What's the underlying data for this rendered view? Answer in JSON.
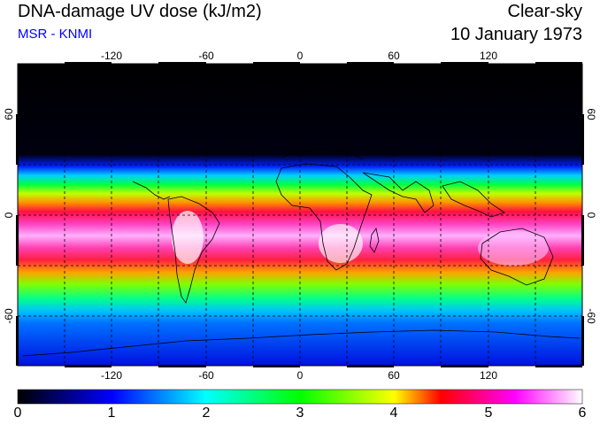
{
  "header": {
    "title": "DNA-damage UV dose (kJ/m2)",
    "source": "MSR - KNMI",
    "condition": "Clear-sky",
    "date": "10 January 1973"
  },
  "map": {
    "projection": "equirectangular",
    "lon_range": [
      -180,
      180
    ],
    "lat_range": [
      -90,
      90
    ],
    "lon_ticks": [
      "-120",
      "-60",
      "0",
      "60",
      "120"
    ],
    "lat_ticks_left": [
      "60",
      "0",
      "-60"
    ],
    "lat_ticks_right": [
      "60",
      "0",
      "-60"
    ],
    "gridlines": "dashed every 30 degrees"
  },
  "colorbar": {
    "min": 0,
    "max": 6,
    "labels": [
      "0",
      "1",
      "2",
      "3",
      "4",
      "5",
      "6"
    ],
    "colors": [
      "#000000",
      "#0000ff",
      "#00ffff",
      "#00ff00",
      "#ffff00",
      "#ff0000",
      "#ff00ff",
      "#ffffff"
    ]
  }
}
